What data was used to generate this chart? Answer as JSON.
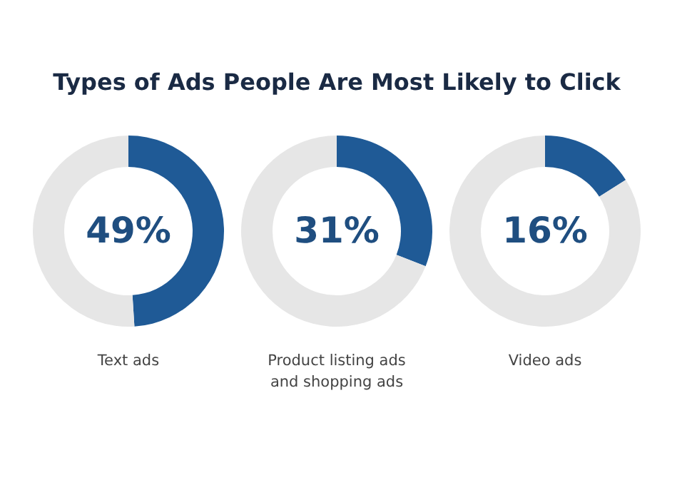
{
  "chart_data": [
    {
      "type": "donut",
      "title": "Types of Ads People Are Most Likely to Click",
      "xlabel": "Text ads",
      "categories": [
        null,
        null
      ],
      "values": [
        49,
        51
      ],
      "colors": [
        "#1f5a96",
        "#e6e6e6"
      ],
      "value_labels": [
        "49%",
        null
      ]
    },
    {
      "type": "donut",
      "xlabel": "Product listing ads\nand shopping ads",
      "categories": [
        null,
        null
      ],
      "values": [
        31,
        69
      ],
      "colors": [
        "#1f5a96",
        "#e6e6e6"
      ],
      "value_labels": [
        "31%",
        null
      ]
    },
    {
      "type": "donut",
      "xlabel": "Video ads",
      "categories": [
        null,
        null
      ],
      "values": [
        16,
        84
      ],
      "colors": [
        "#1f5a96",
        "#e6e6e6"
      ],
      "value_labels": [
        "16%",
        null
      ]
    }
  ]
}
